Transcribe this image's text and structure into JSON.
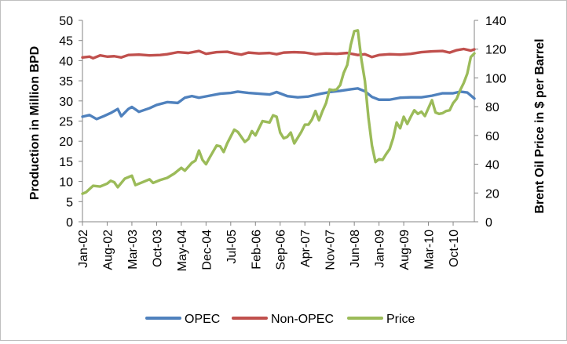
{
  "chart_data": {
    "type": "line",
    "title": "",
    "xlabel": "",
    "ylabel": "Production in Million BPD",
    "y2label": "Brent  Oil Price in $ per Barrel",
    "ylim": [
      0,
      50
    ],
    "y2lim": [
      0,
      140
    ],
    "y_ticks": [
      "0",
      "5",
      "10",
      "15",
      "20",
      "25",
      "30",
      "35",
      "40",
      "45",
      "50"
    ],
    "y2_ticks": [
      "0",
      "20",
      "40",
      "60",
      "80",
      "100",
      "120",
      "140"
    ],
    "x_ticks": [
      "Jan-02",
      "Aug-02",
      "Mar-03",
      "Oct-03",
      "May-04",
      "Dec-04",
      "Jul-05",
      "Feb-06",
      "Sep-06",
      "Apr-07",
      "Nov-07",
      "Jun-08",
      "Jan-09",
      "Aug-09",
      "Mar-10",
      "Oct-10"
    ],
    "x_start": "Jan-02",
    "x_step_months": 7,
    "grid": false,
    "legend_position": "bottom",
    "series": [
      {
        "name": "OPEC",
        "axis": "left",
        "color": "#4f81bd",
        "anchors": [
          [
            "Jan-02",
            26.1
          ],
          [
            "Mar-02",
            26.5
          ],
          [
            "May-02",
            25.5
          ],
          [
            "Jul-02",
            26.2
          ],
          [
            "Sep-02",
            27.0
          ],
          [
            "Nov-02",
            28.0
          ],
          [
            "Dec-02",
            26.2
          ],
          [
            "Feb-03",
            28.0
          ],
          [
            "Mar-03",
            28.5
          ],
          [
            "May-03",
            27.3
          ],
          [
            "Aug-03",
            28.2
          ],
          [
            "Oct-03",
            29.0
          ],
          [
            "Jan-04",
            29.7
          ],
          [
            "Apr-04",
            29.5
          ],
          [
            "Jun-04",
            30.8
          ],
          [
            "Aug-04",
            31.2
          ],
          [
            "Oct-04",
            30.8
          ],
          [
            "Jan-05",
            31.3
          ],
          [
            "Apr-05",
            31.8
          ],
          [
            "Jul-05",
            32.0
          ],
          [
            "Sep-05",
            32.3
          ],
          [
            "Dec-05",
            32.0
          ],
          [
            "Mar-06",
            31.8
          ],
          [
            "Jun-06",
            31.6
          ],
          [
            "Aug-06",
            32.2
          ],
          [
            "Nov-06",
            31.2
          ],
          [
            "Feb-07",
            30.9
          ],
          [
            "May-07",
            31.1
          ],
          [
            "Aug-07",
            31.7
          ],
          [
            "Nov-07",
            32.2
          ],
          [
            "Feb-08",
            32.5
          ],
          [
            "May-08",
            32.9
          ],
          [
            "Jul-08",
            33.1
          ],
          [
            "Sep-08",
            32.4
          ],
          [
            "Nov-08",
            31.0
          ],
          [
            "Jan-09",
            30.3
          ],
          [
            "Apr-09",
            30.3
          ],
          [
            "Jul-09",
            30.8
          ],
          [
            "Oct-09",
            30.9
          ],
          [
            "Jan-10",
            30.9
          ],
          [
            "Apr-10",
            31.3
          ],
          [
            "Jul-10",
            31.9
          ],
          [
            "Oct-10",
            31.9
          ],
          [
            "Dec-10",
            32.3
          ],
          [
            "Feb-11",
            32.1
          ],
          [
            "Apr-11",
            30.6
          ]
        ]
      },
      {
        "name": "Non-OPEC",
        "axis": "left",
        "color": "#c0504d",
        "anchors": [
          [
            "Jan-02",
            40.8
          ],
          [
            "Mar-02",
            41.0
          ],
          [
            "Apr-02",
            40.6
          ],
          [
            "Jun-02",
            41.3
          ],
          [
            "Aug-02",
            41.0
          ],
          [
            "Oct-02",
            41.1
          ],
          [
            "Dec-02",
            40.8
          ],
          [
            "Feb-03",
            41.4
          ],
          [
            "May-03",
            41.5
          ],
          [
            "Aug-03",
            41.3
          ],
          [
            "Nov-03",
            41.4
          ],
          [
            "Jan-04",
            41.6
          ],
          [
            "Apr-04",
            42.1
          ],
          [
            "Jul-04",
            41.9
          ],
          [
            "Oct-04",
            42.4
          ],
          [
            "Dec-04",
            41.7
          ],
          [
            "Mar-05",
            42.1
          ],
          [
            "Jun-05",
            42.2
          ],
          [
            "Aug-05",
            41.8
          ],
          [
            "Oct-05",
            41.5
          ],
          [
            "Dec-05",
            42.0
          ],
          [
            "Mar-06",
            41.8
          ],
          [
            "Jun-06",
            41.9
          ],
          [
            "Aug-06",
            41.6
          ],
          [
            "Oct-06",
            42.0
          ],
          [
            "Jan-07",
            42.1
          ],
          [
            "Apr-07",
            42.0
          ],
          [
            "Jul-07",
            41.6
          ],
          [
            "Oct-07",
            41.8
          ],
          [
            "Jan-08",
            41.7
          ],
          [
            "Apr-08",
            41.9
          ],
          [
            "Jul-08",
            41.4
          ],
          [
            "Sep-08",
            41.6
          ],
          [
            "Nov-08",
            40.9
          ],
          [
            "Jan-09",
            41.4
          ],
          [
            "Apr-09",
            41.6
          ],
          [
            "Jul-09",
            41.5
          ],
          [
            "Oct-09",
            41.7
          ],
          [
            "Jan-10",
            42.1
          ],
          [
            "Apr-10",
            42.3
          ],
          [
            "Jul-10",
            42.4
          ],
          [
            "Sep-10",
            42.0
          ],
          [
            "Nov-10",
            42.6
          ],
          [
            "Jan-11",
            42.9
          ],
          [
            "Mar-11",
            42.5
          ],
          [
            "Apr-11",
            42.8
          ]
        ]
      },
      {
        "name": "Price",
        "axis": "right",
        "color": "#9bbb59",
        "anchors": [
          [
            "Jan-02",
            19.5
          ],
          [
            "Feb-02",
            20.5
          ],
          [
            "Apr-02",
            25.0
          ],
          [
            "Jun-02",
            24.5
          ],
          [
            "Aug-02",
            26.5
          ],
          [
            "Sep-02",
            28.5
          ],
          [
            "Oct-02",
            27.5
          ],
          [
            "Nov-02",
            24.0
          ],
          [
            "Jan-03",
            30.0
          ],
          [
            "Mar-03",
            32.0
          ],
          [
            "Apr-03",
            25.5
          ],
          [
            "Jun-03",
            27.5
          ],
          [
            "Aug-03",
            29.5
          ],
          [
            "Sep-03",
            27.0
          ],
          [
            "Nov-03",
            29.0
          ],
          [
            "Jan-04",
            30.5
          ],
          [
            "Mar-04",
            33.5
          ],
          [
            "May-04",
            37.5
          ],
          [
            "Jun-04",
            35.5
          ],
          [
            "Aug-04",
            41.0
          ],
          [
            "Sep-04",
            42.5
          ],
          [
            "Oct-04",
            49.5
          ],
          [
            "Nov-04",
            43.0
          ],
          [
            "Dec-04",
            40.0
          ],
          [
            "Jan-05",
            44.5
          ],
          [
            "Mar-05",
            53.0
          ],
          [
            "Apr-05",
            52.5
          ],
          [
            "May-05",
            48.5
          ],
          [
            "Jun-05",
            54.5
          ],
          [
            "Aug-05",
            64.0
          ],
          [
            "Sep-05",
            62.5
          ],
          [
            "Nov-05",
            55.5
          ],
          [
            "Dec-05",
            57.5
          ],
          [
            "Jan-06",
            63.0
          ],
          [
            "Feb-06",
            60.0
          ],
          [
            "Apr-06",
            70.0
          ],
          [
            "May-06",
            69.5
          ],
          [
            "Jun-06",
            69.0
          ],
          [
            "Jul-06",
            74.0
          ],
          [
            "Aug-06",
            73.0
          ],
          [
            "Sep-06",
            62.0
          ],
          [
            "Oct-06",
            58.0
          ],
          [
            "Nov-06",
            59.0
          ],
          [
            "Dec-06",
            62.0
          ],
          [
            "Jan-07",
            54.5
          ],
          [
            "Mar-07",
            62.5
          ],
          [
            "Apr-07",
            67.5
          ],
          [
            "May-07",
            67.5
          ],
          [
            "Jun-07",
            71.0
          ],
          [
            "Jul-07",
            77.0
          ],
          [
            "Aug-07",
            70.5
          ],
          [
            "Sep-07",
            77.0
          ],
          [
            "Oct-07",
            82.5
          ],
          [
            "Nov-07",
            92.0
          ],
          [
            "Dec-07",
            91.5
          ],
          [
            "Jan-08",
            92.0
          ],
          [
            "Feb-08",
            95.0
          ],
          [
            "Mar-08",
            103.5
          ],
          [
            "Apr-08",
            109.0
          ],
          [
            "May-08",
            123.0
          ],
          [
            "Jun-08",
            132.5
          ],
          [
            "Jul-08",
            133.0
          ],
          [
            "Aug-08",
            113.0
          ],
          [
            "Sep-08",
            98.0
          ],
          [
            "Oct-08",
            72.5
          ],
          [
            "Nov-08",
            53.0
          ],
          [
            "Dec-08",
            41.5
          ],
          [
            "Jan-09",
            43.5
          ],
          [
            "Feb-09",
            43.0
          ],
          [
            "Mar-09",
            47.0
          ],
          [
            "Apr-09",
            50.5
          ],
          [
            "May-09",
            58.0
          ],
          [
            "Jun-09",
            69.0
          ],
          [
            "Jul-09",
            65.0
          ],
          [
            "Aug-09",
            73.0
          ],
          [
            "Sep-09",
            68.0
          ],
          [
            "Oct-09",
            73.0
          ],
          [
            "Nov-09",
            77.5
          ],
          [
            "Dec-09",
            75.0
          ],
          [
            "Jan-10",
            76.5
          ],
          [
            "Feb-10",
            73.5
          ],
          [
            "Mar-10",
            79.0
          ],
          [
            "Apr-10",
            84.5
          ],
          [
            "May-10",
            76.0
          ],
          [
            "Jun-10",
            75.0
          ],
          [
            "Jul-10",
            75.5
          ],
          [
            "Aug-10",
            77.0
          ],
          [
            "Sep-10",
            77.5
          ],
          [
            "Oct-10",
            82.5
          ],
          [
            "Nov-10",
            85.5
          ],
          [
            "Dec-10",
            91.5
          ],
          [
            "Jan-11",
            96.5
          ],
          [
            "Feb-11",
            103.0
          ],
          [
            "Mar-11",
            114.5
          ],
          [
            "Apr-11",
            117.0
          ]
        ]
      }
    ]
  }
}
